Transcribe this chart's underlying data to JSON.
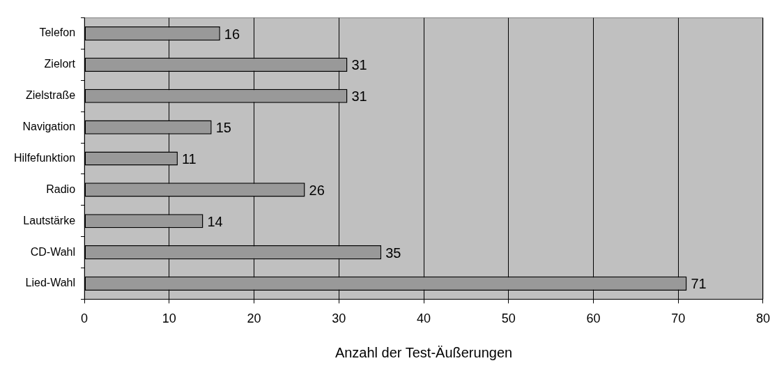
{
  "chart_data": {
    "type": "bar",
    "orientation": "horizontal",
    "xlabel": "Anzahl der Test-Äußerungen",
    "categories": [
      "Telefon",
      "Zielort",
      "Zielstraße",
      "Navigation",
      "Hilfefunktion",
      "Radio",
      "Lautstärke",
      "CD-Wahl",
      "Lied-Wahl"
    ],
    "values": [
      16,
      31,
      31,
      15,
      11,
      26,
      14,
      35,
      71
    ],
    "color": "#999999",
    "xlim": [
      0,
      80
    ],
    "xticks": [
      0,
      10,
      20,
      30,
      40,
      50,
      60,
      70,
      80
    ],
    "grid": "x",
    "legend": false,
    "data_labels": true
  }
}
